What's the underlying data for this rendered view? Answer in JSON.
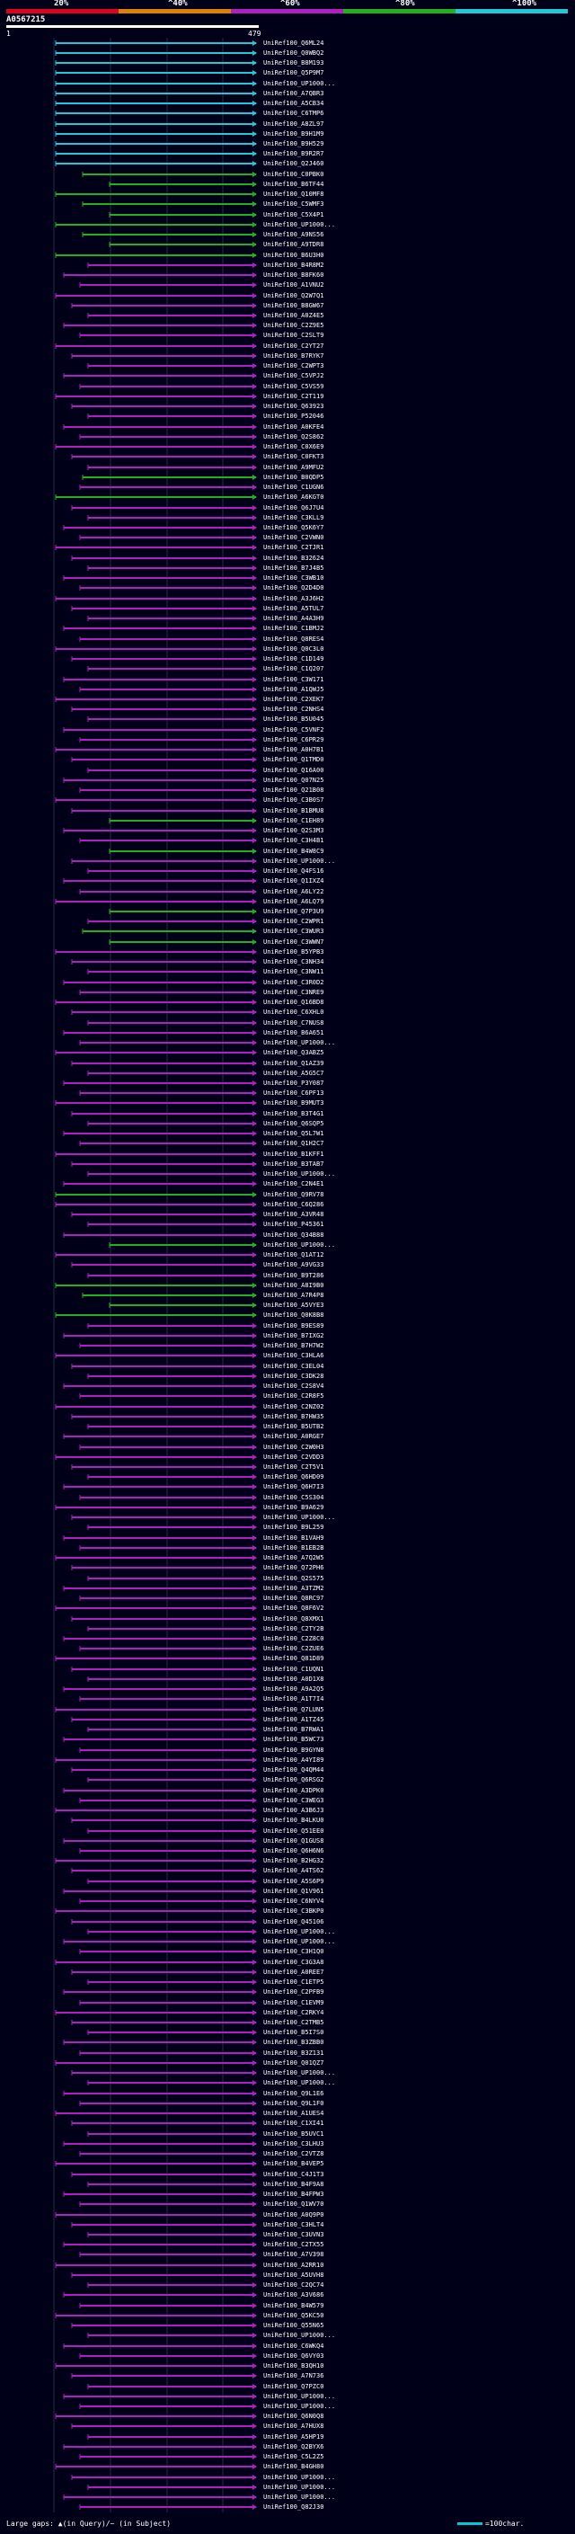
{
  "legend": {
    "labels": [
      "20%",
      "^40%",
      "^60%",
      "^80%",
      "^100%"
    ],
    "colors": [
      "#e00020",
      "#e08000",
      "#b020c0",
      "#20b020",
      "#20c8d8"
    ]
  },
  "query": {
    "id": "A0567215",
    "start": "1",
    "end": "479"
  },
  "footer": {
    "gaps_text": "Large gaps: ▲(in Query)/~ (in Subject)",
    "scale_text": "=100char."
  },
  "hits": [
    {
      "id": "UniRef100_Q6ML24",
      "pct": "cyan"
    },
    {
      "id": "UniRef100_Q0WBQ2",
      "pct": "cyan"
    },
    {
      "id": "UniRef100_B8M193",
      "pct": "cyan"
    },
    {
      "id": "UniRef100_Q5P9M7",
      "pct": "cyan"
    },
    {
      "id": "UniRef100_UP1000...",
      "pct": "cyan"
    },
    {
      "id": "UniRef100_A7QBR3",
      "pct": "cyan"
    },
    {
      "id": "UniRef100_A5CB34",
      "pct": "cyan"
    },
    {
      "id": "UniRef100_C6TMP6",
      "pct": "cyan"
    },
    {
      "id": "UniRef100_A8ZL97",
      "pct": "cyan"
    },
    {
      "id": "UniRef100_B9H1M9",
      "pct": "cyan"
    },
    {
      "id": "UniRef100_B9H529",
      "pct": "cyan"
    },
    {
      "id": "UniRef100_B9R2R7",
      "pct": "cyan"
    },
    {
      "id": "UniRef100_Q2J460",
      "pct": "cyan"
    },
    {
      "id": "UniRef100_C0PBK0",
      "pct": "green"
    },
    {
      "id": "UniRef100_B6TF44",
      "pct": "green"
    },
    {
      "id": "UniRef100_Q10MF8",
      "pct": "green"
    },
    {
      "id": "UniRef100_C5WMF3",
      "pct": "green"
    },
    {
      "id": "UniRef100_C5X4P1",
      "pct": "green"
    },
    {
      "id": "UniRef100_UP1000...",
      "pct": "green"
    },
    {
      "id": "UniRef100_A9NS56",
      "pct": "green"
    },
    {
      "id": "UniRef100_A9TDR8",
      "pct": "green"
    },
    {
      "id": "UniRef100_B6U3H0",
      "pct": "green"
    },
    {
      "id": "UniRef100_B4R8M2",
      "pct": "purple"
    },
    {
      "id": "UniRef100_B8FK60",
      "pct": "purple"
    },
    {
      "id": "UniRef100_A1VNU2",
      "pct": "purple"
    },
    {
      "id": "UniRef100_Q2W7Q1",
      "pct": "purple"
    },
    {
      "id": "UniRef100_B8GW67",
      "pct": "purple"
    },
    {
      "id": "UniRef100_A0Z4E5",
      "pct": "purple"
    },
    {
      "id": "UniRef100_C2Z9E5",
      "pct": "purple"
    },
    {
      "id": "UniRef100_C2SLT9",
      "pct": "purple"
    },
    {
      "id": "UniRef100_C2YT27",
      "pct": "purple"
    },
    {
      "id": "UniRef100_B7RYK7",
      "pct": "purple"
    },
    {
      "id": "UniRef100_C2WPT3",
      "pct": "purple"
    },
    {
      "id": "UniRef100_C5VPJ2",
      "pct": "purple"
    },
    {
      "id": "UniRef100_C5VS59",
      "pct": "purple"
    },
    {
      "id": "UniRef100_C2T119",
      "pct": "purple"
    },
    {
      "id": "UniRef100_Q63923",
      "pct": "purple"
    },
    {
      "id": "UniRef100_P52046",
      "pct": "purple"
    },
    {
      "id": "UniRef100_A0KFE4",
      "pct": "purple"
    },
    {
      "id": "UniRef100_Q2S862",
      "pct": "purple"
    },
    {
      "id": "UniRef100_C0X6E9",
      "pct": "purple"
    },
    {
      "id": "UniRef100_C0FKT3",
      "pct": "purple"
    },
    {
      "id": "UniRef100_A9MFU2",
      "pct": "purple"
    },
    {
      "id": "UniRef100_B0QDP5",
      "pct": "green"
    },
    {
      "id": "UniRef100_C1UGN6",
      "pct": "purple"
    },
    {
      "id": "UniRef100_A6KGT0",
      "pct": "green"
    },
    {
      "id": "UniRef100_Q6J7U4",
      "pct": "purple"
    },
    {
      "id": "UniRef100_C3KLL9",
      "pct": "purple"
    },
    {
      "id": "UniRef100_Q5K6Y7",
      "pct": "purple"
    },
    {
      "id": "UniRef100_C2VWN0",
      "pct": "purple"
    },
    {
      "id": "UniRef100_C2TJR1",
      "pct": "purple"
    },
    {
      "id": "UniRef100_B32624",
      "pct": "purple"
    },
    {
      "id": "UniRef100_B7J4B5",
      "pct": "purple"
    },
    {
      "id": "UniRef100_C3WB10",
      "pct": "purple"
    },
    {
      "id": "UniRef100_Q2D4D0",
      "pct": "purple"
    },
    {
      "id": "UniRef100_A3J6H2",
      "pct": "purple"
    },
    {
      "id": "UniRef100_A5TUL7",
      "pct": "purple"
    },
    {
      "id": "UniRef100_A4A3H9",
      "pct": "purple"
    },
    {
      "id": "UniRef100_C1BMJ2",
      "pct": "purple"
    },
    {
      "id": "UniRef100_Q8RES4",
      "pct": "purple"
    },
    {
      "id": "UniRef100_Q0C3L0",
      "pct": "purple"
    },
    {
      "id": "UniRef100_C1D149",
      "pct": "purple"
    },
    {
      "id": "UniRef100_C1Q207",
      "pct": "purple"
    },
    {
      "id": "UniRef100_C3W171",
      "pct": "purple"
    },
    {
      "id": "UniRef100_A1QWJ5",
      "pct": "purple"
    },
    {
      "id": "UniRef100_C2XEK7",
      "pct": "purple"
    },
    {
      "id": "UniRef100_C2NHS4",
      "pct": "purple"
    },
    {
      "id": "UniRef100_B5U045",
      "pct": "purple"
    },
    {
      "id": "UniRef100_C5VNF2",
      "pct": "purple"
    },
    {
      "id": "UniRef100_C6PR29",
      "pct": "purple"
    },
    {
      "id": "UniRef100_A0H7B1",
      "pct": "purple"
    },
    {
      "id": "UniRef100_Q1TMD0",
      "pct": "purple"
    },
    {
      "id": "UniRef100_Q16A00",
      "pct": "purple"
    },
    {
      "id": "UniRef100_Q07N25",
      "pct": "purple"
    },
    {
      "id": "UniRef100_Q21B08",
      "pct": "purple"
    },
    {
      "id": "UniRef100_C3B0S7",
      "pct": "purple"
    },
    {
      "id": "UniRef100_B1BMU8",
      "pct": "purple"
    },
    {
      "id": "UniRef100_C1EH89",
      "pct": "green"
    },
    {
      "id": "UniRef100_Q2S3M3",
      "pct": "purple"
    },
    {
      "id": "UniRef100_C3H4B1",
      "pct": "purple"
    },
    {
      "id": "UniRef100_B4W8C9",
      "pct": "green"
    },
    {
      "id": "UniRef100_UP1000...",
      "pct": "purple"
    },
    {
      "id": "UniRef100_Q4FS16",
      "pct": "purple"
    },
    {
      "id": "UniRef100_Q1IXZ4",
      "pct": "purple"
    },
    {
      "id": "UniRef100_A6LY22",
      "pct": "purple"
    },
    {
      "id": "UniRef100_A6LQ79",
      "pct": "purple"
    },
    {
      "id": "UniRef100_Q7P3U9",
      "pct": "green"
    },
    {
      "id": "UniRef100_C2WPR1",
      "pct": "purple"
    },
    {
      "id": "UniRef100_C3WUR3",
      "pct": "green"
    },
    {
      "id": "UniRef100_C3WWN7",
      "pct": "green"
    },
    {
      "id": "UniRef100_B5YPB3",
      "pct": "purple"
    },
    {
      "id": "UniRef100_C3NH34",
      "pct": "purple"
    },
    {
      "id": "UniRef100_C3NW11",
      "pct": "purple"
    },
    {
      "id": "UniRef100_C3R0D2",
      "pct": "purple"
    },
    {
      "id": "UniRef100_C3NRE9",
      "pct": "purple"
    },
    {
      "id": "UniRef100_Q16BD8",
      "pct": "purple"
    },
    {
      "id": "UniRef100_C6XHL0",
      "pct": "purple"
    },
    {
      "id": "UniRef100_C7NUS8",
      "pct": "purple"
    },
    {
      "id": "UniRef100_B6A651",
      "pct": "purple"
    },
    {
      "id": "UniRef100_UP1000...",
      "pct": "purple"
    },
    {
      "id": "UniRef100_Q3ABZ5",
      "pct": "purple"
    },
    {
      "id": "UniRef100_Q1AZ39",
      "pct": "purple"
    },
    {
      "id": "UniRef100_A5G5C7",
      "pct": "purple"
    },
    {
      "id": "UniRef100_P3Y087",
      "pct": "purple"
    },
    {
      "id": "UniRef100_C6PF13",
      "pct": "purple"
    },
    {
      "id": "UniRef100_B9MUT3",
      "pct": "purple"
    },
    {
      "id": "UniRef100_B3T4G1",
      "pct": "purple"
    },
    {
      "id": "UniRef100_Q6SQP5",
      "pct": "purple"
    },
    {
      "id": "UniRef100_Q5L7W1",
      "pct": "purple"
    },
    {
      "id": "UniRef100_Q1H2C7",
      "pct": "purple"
    },
    {
      "id": "UniRef100_B1KFF1",
      "pct": "purple"
    },
    {
      "id": "UniRef100_B3TAB7",
      "pct": "purple"
    },
    {
      "id": "UniRef100_UP1000...",
      "pct": "purple"
    },
    {
      "id": "UniRef100_C2N4E1",
      "pct": "purple"
    },
    {
      "id": "UniRef100_Q9RV78",
      "pct": "green"
    },
    {
      "id": "UniRef100_C6Q286",
      "pct": "purple"
    },
    {
      "id": "UniRef100_A3VR48",
      "pct": "purple"
    },
    {
      "id": "UniRef100_P45361",
      "pct": "purple"
    },
    {
      "id": "UniRef100_Q34B88",
      "pct": "purple"
    },
    {
      "id": "UniRef100_UP1000...",
      "pct": "green"
    },
    {
      "id": "UniRef100_Q1AT12",
      "pct": "purple"
    },
    {
      "id": "UniRef100_A9VG33",
      "pct": "purple"
    },
    {
      "id": "UniRef100_B9T286",
      "pct": "purple"
    },
    {
      "id": "UniRef100_A8I9B0",
      "pct": "green"
    },
    {
      "id": "UniRef100_A7R4P8",
      "pct": "green"
    },
    {
      "id": "UniRef100_A5VYE3",
      "pct": "green"
    },
    {
      "id": "UniRef100_Q0K8B8",
      "pct": "green"
    },
    {
      "id": "UniRef100_B9ES89",
      "pct": "purple"
    },
    {
      "id": "UniRef100_B7IXG2",
      "pct": "purple"
    },
    {
      "id": "UniRef100_B7H7W2",
      "pct": "purple"
    },
    {
      "id": "UniRef100_C3HLA6",
      "pct": "purple"
    },
    {
      "id": "UniRef100_C3EL04",
      "pct": "purple"
    },
    {
      "id": "UniRef100_C3DK28",
      "pct": "purple"
    },
    {
      "id": "UniRef100_C2S8V4",
      "pct": "purple"
    },
    {
      "id": "UniRef100_C2R8F5",
      "pct": "purple"
    },
    {
      "id": "UniRef100_C2NZ02",
      "pct": "purple"
    },
    {
      "id": "UniRef100_B7HW35",
      "pct": "purple"
    },
    {
      "id": "UniRef100_B5UTB2",
      "pct": "purple"
    },
    {
      "id": "UniRef100_A0RGE7",
      "pct": "purple"
    },
    {
      "id": "UniRef100_C2W0H3",
      "pct": "purple"
    },
    {
      "id": "UniRef100_C2VDD3",
      "pct": "purple"
    },
    {
      "id": "UniRef100_C2T5V1",
      "pct": "purple"
    },
    {
      "id": "UniRef100_Q6HD09",
      "pct": "purple"
    },
    {
      "id": "UniRef100_Q6H7I3",
      "pct": "purple"
    },
    {
      "id": "UniRef100_C5S304",
      "pct": "purple"
    },
    {
      "id": "UniRef100_B9A629",
      "pct": "purple"
    },
    {
      "id": "UniRef100_UP1000...",
      "pct": "purple"
    },
    {
      "id": "UniRef100_B9L259",
      "pct": "purple"
    },
    {
      "id": "UniRef100_B1VAH9",
      "pct": "purple"
    },
    {
      "id": "UniRef100_B1EB2B",
      "pct": "purple"
    },
    {
      "id": "UniRef100_A7Q2W5",
      "pct": "purple"
    },
    {
      "id": "UniRef100_Q72PH6",
      "pct": "purple"
    },
    {
      "id": "UniRef100_Q2S575",
      "pct": "purple"
    },
    {
      "id": "UniRef100_A3TZM2",
      "pct": "purple"
    },
    {
      "id": "UniRef100_Q8RC97",
      "pct": "purple"
    },
    {
      "id": "UniRef100_Q8F6V2",
      "pct": "purple"
    },
    {
      "id": "UniRef100_Q8XMX1",
      "pct": "purple"
    },
    {
      "id": "UniRef100_C2TY2B",
      "pct": "purple"
    },
    {
      "id": "UniRef100_C2Z8C0",
      "pct": "purple"
    },
    {
      "id": "UniRef100_C2ZUE6",
      "pct": "purple"
    },
    {
      "id": "UniRef100_Q81D89",
      "pct": "purple"
    },
    {
      "id": "UniRef100_C1UQN1",
      "pct": "purple"
    },
    {
      "id": "UniRef100_A0D1X8",
      "pct": "purple"
    },
    {
      "id": "UniRef100_A9A2Q5",
      "pct": "purple"
    },
    {
      "id": "UniRef100_A1T7I4",
      "pct": "purple"
    },
    {
      "id": "UniRef100_Q7LUN5",
      "pct": "purple"
    },
    {
      "id": "UniRef100_A1TZ45",
      "pct": "purple"
    },
    {
      "id": "UniRef100_B7RWA1",
      "pct": "purple"
    },
    {
      "id": "UniRef100_B5WC73",
      "pct": "purple"
    },
    {
      "id": "UniRef100_B9GYN8",
      "pct": "purple"
    },
    {
      "id": "UniRef100_A4YI89",
      "pct": "purple"
    },
    {
      "id": "UniRef100_Q4QM44",
      "pct": "purple"
    },
    {
      "id": "UniRef100_Q6RSG2",
      "pct": "purple"
    },
    {
      "id": "UniRef100_A3DPK0",
      "pct": "purple"
    },
    {
      "id": "UniRef100_C3WEG3",
      "pct": "purple"
    },
    {
      "id": "UniRef100_A3B6J3",
      "pct": "purple"
    },
    {
      "id": "UniRef100_B4LKU0",
      "pct": "purple"
    },
    {
      "id": "UniRef100_Q51EE0",
      "pct": "purple"
    },
    {
      "id": "UniRef100_Q1GUS8",
      "pct": "purple"
    },
    {
      "id": "UniRef100_Q6H6N6",
      "pct": "purple"
    },
    {
      "id": "UniRef100_B2HG32",
      "pct": "purple"
    },
    {
      "id": "UniRef100_A4TS62",
      "pct": "purple"
    },
    {
      "id": "UniRef100_A5S6P9",
      "pct": "purple"
    },
    {
      "id": "UniRef100_Q1V961",
      "pct": "purple"
    },
    {
      "id": "UniRef100_C6NYV4",
      "pct": "purple"
    },
    {
      "id": "UniRef100_C3BKP0",
      "pct": "purple"
    },
    {
      "id": "UniRef100_Q45106",
      "pct": "purple"
    },
    {
      "id": "UniRef100_UP1000...",
      "pct": "purple"
    },
    {
      "id": "UniRef100_UP1000...",
      "pct": "purple"
    },
    {
      "id": "UniRef100_C3H1Q0",
      "pct": "purple"
    },
    {
      "id": "UniRef100_C3G3A8",
      "pct": "purple"
    },
    {
      "id": "UniRef100_A0REE7",
      "pct": "purple"
    },
    {
      "id": "UniRef100_C1ETP5",
      "pct": "purple"
    },
    {
      "id": "UniRef100_C2PFB9",
      "pct": "purple"
    },
    {
      "id": "UniRef100_C1EVM9",
      "pct": "purple"
    },
    {
      "id": "UniRef100_C2RKY4",
      "pct": "purple"
    },
    {
      "id": "UniRef100_C2TMB5",
      "pct": "purple"
    },
    {
      "id": "UniRef100_B5I7S0",
      "pct": "purple"
    },
    {
      "id": "UniRef100_B3ZBB0",
      "pct": "purple"
    },
    {
      "id": "UniRef100_B3Z131",
      "pct": "purple"
    },
    {
      "id": "UniRef100_Q01QZ7",
      "pct": "purple"
    },
    {
      "id": "UniRef100_UP1000...",
      "pct": "purple"
    },
    {
      "id": "UniRef100_UP1000...",
      "pct": "purple"
    },
    {
      "id": "UniRef100_Q9L1E6",
      "pct": "purple"
    },
    {
      "id": "UniRef100_Q9L1F0",
      "pct": "purple"
    },
    {
      "id": "UniRef100_A1UES4",
      "pct": "purple"
    },
    {
      "id": "UniRef100_C1XI41",
      "pct": "purple"
    },
    {
      "id": "UniRef100_B5UVC1",
      "pct": "purple"
    },
    {
      "id": "UniRef100_C3LHU3",
      "pct": "purple"
    },
    {
      "id": "UniRef100_C2VTZ8",
      "pct": "purple"
    },
    {
      "id": "UniRef100_B4VEP5",
      "pct": "purple"
    },
    {
      "id": "UniRef100_C4J1T3",
      "pct": "purple"
    },
    {
      "id": "UniRef100_B4F9A8",
      "pct": "purple"
    },
    {
      "id": "UniRef100_B4FPW3",
      "pct": "purple"
    },
    {
      "id": "UniRef100_Q1WV70",
      "pct": "purple"
    },
    {
      "id": "UniRef100_A0Q9P0",
      "pct": "purple"
    },
    {
      "id": "UniRef100_C3HLT4",
      "pct": "purple"
    },
    {
      "id": "UniRef100_C3UVN3",
      "pct": "purple"
    },
    {
      "id": "UniRef100_C2TX55",
      "pct": "purple"
    },
    {
      "id": "UniRef100_A7V398",
      "pct": "purple"
    },
    {
      "id": "UniRef100_A2RR10",
      "pct": "purple"
    },
    {
      "id": "UniRef100_A5UVH8",
      "pct": "purple"
    },
    {
      "id": "UniRef100_C2QC74",
      "pct": "purple"
    },
    {
      "id": "UniRef100_A3V686",
      "pct": "purple"
    },
    {
      "id": "UniRef100_B4W579",
      "pct": "purple"
    },
    {
      "id": "UniRef100_Q5KC50",
      "pct": "purple"
    },
    {
      "id": "UniRef100_Q55N65",
      "pct": "purple"
    },
    {
      "id": "UniRef100_UP1000...",
      "pct": "purple"
    },
    {
      "id": "UniRef100_C6WKQ4",
      "pct": "purple"
    },
    {
      "id": "UniRef100_Q6VY03",
      "pct": "purple"
    },
    {
      "id": "UniRef100_B3QH10",
      "pct": "purple"
    },
    {
      "id": "UniRef100_A7N736",
      "pct": "purple"
    },
    {
      "id": "UniRef100_Q7PZC0",
      "pct": "purple"
    },
    {
      "id": "UniRef100_UP1000...",
      "pct": "purple"
    },
    {
      "id": "UniRef100_UP1000...",
      "pct": "purple"
    },
    {
      "id": "UniRef100_Q6N0Q8",
      "pct": "purple"
    },
    {
      "id": "UniRef100_A7HUX8",
      "pct": "purple"
    },
    {
      "id": "UniRef100_A5HP19",
      "pct": "purple"
    },
    {
      "id": "UniRef100_Q2BYX6",
      "pct": "purple"
    },
    {
      "id": "UniRef100_C5L2Z5",
      "pct": "purple"
    },
    {
      "id": "UniRef100_B4GH80",
      "pct": "purple"
    },
    {
      "id": "UniRef100_UP1000...",
      "pct": "purple"
    },
    {
      "id": "UniRef100_UP1000...",
      "pct": "purple"
    },
    {
      "id": "UniRef100_UP1000...",
      "pct": "purple"
    },
    {
      "id": "UniRef100_Q82J30",
      "pct": "purple"
    }
  ]
}
